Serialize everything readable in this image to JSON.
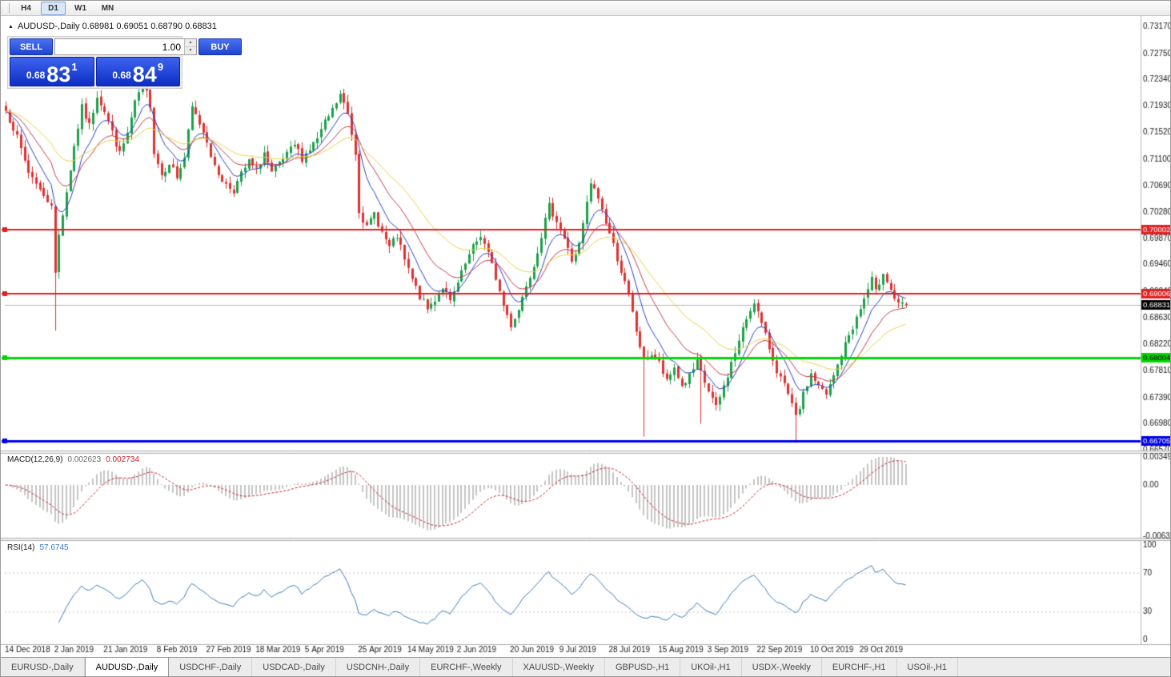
{
  "toolbar": {
    "timeframes": [
      {
        "label": "H4",
        "active": false
      },
      {
        "label": "D1",
        "active": true
      },
      {
        "label": "W1",
        "active": false
      },
      {
        "label": "MN",
        "active": false
      }
    ]
  },
  "chart": {
    "collapse_icon": "▲",
    "title": "AUDUSD-,Daily  0.68981 0.69051 0.68790 0.68831"
  },
  "trade_panel": {
    "sell_label": "SELL",
    "buy_label": "BUY",
    "volume": "1.00",
    "spin_up_icon": "▲",
    "spin_down_icon": "▼",
    "sell_price": {
      "small": "0.68",
      "big": "83",
      "sup": "1"
    },
    "buy_price": {
      "small": "0.68",
      "big": "84",
      "sup": "9"
    }
  },
  "indicators": {
    "macd": {
      "name": "MACD(12,26,9)",
      "value_main": "0.002623",
      "value_signal": "0.002734",
      "axis": [
        {
          "v": 0.00349,
          "label": "0.00349"
        },
        {
          "v": 0,
          "label": "0.00"
        },
        {
          "v": -0.00637,
          "label": "-0.00637"
        }
      ]
    },
    "rsi": {
      "name": "RSI(14)",
      "value": "57.6745",
      "axis": [
        {
          "v": 100,
          "label": "100"
        },
        {
          "v": 70,
          "label": "70"
        },
        {
          "v": 30,
          "label": "30"
        },
        {
          "v": 0,
          "label": "0"
        }
      ],
      "levels": [
        70,
        30
      ]
    }
  },
  "chart_data": {
    "type": "candlestick",
    "symbol": "AUDUSD",
    "timeframe": "Daily",
    "ohlc_display": {
      "open": "0.68981",
      "high": "0.69051",
      "low": "0.68790",
      "close": "0.68831"
    },
    "n_candles": 238,
    "seed": 7,
    "ylim": [
      0.66574,
      0.73256
    ],
    "y_ticks": [
      "0.73170",
      "0.72750",
      "0.72340",
      "0.71930",
      "0.71520",
      "0.71100",
      "0.70690",
      "0.70280",
      "0.69870",
      "0.69460",
      "0.69040",
      "0.68630",
      "0.68220",
      "0.67810",
      "0.67390",
      "0.66980",
      "0.66570"
    ],
    "x_labels": [
      {
        "i": 0,
        "label": "14 Dec 2018"
      },
      {
        "i": 13,
        "label": "2 Jan 2019"
      },
      {
        "i": 26,
        "label": "21 Jan 2019"
      },
      {
        "i": 40,
        "label": "8 Feb 2019"
      },
      {
        "i": 53,
        "label": "27 Feb 2019"
      },
      {
        "i": 66,
        "label": "18 Mar 2019"
      },
      {
        "i": 79,
        "label": "5 Apr 2019"
      },
      {
        "i": 93,
        "label": "25 Apr 2019"
      },
      {
        "i": 106,
        "label": "14 May 2019"
      },
      {
        "i": 119,
        "label": "2 Jun 2019"
      },
      {
        "i": 133,
        "label": "20 Jun 2019"
      },
      {
        "i": 146,
        "label": "9 Jul 2019"
      },
      {
        "i": 159,
        "label": "28 Jul 2019"
      },
      {
        "i": 172,
        "label": "15 Aug 2019"
      },
      {
        "i": 185,
        "label": "3 Sep 2019"
      },
      {
        "i": 198,
        "label": "22 Sep 2019"
      },
      {
        "i": 212,
        "label": "10 Oct 2019"
      },
      {
        "i": 225,
        "label": "29 Oct 2019"
      }
    ],
    "close_anchors": [
      [
        0,
        0.7185
      ],
      [
        2,
        0.716
      ],
      [
        4,
        0.7125
      ],
      [
        6,
        0.709
      ],
      [
        8,
        0.7075
      ],
      [
        10,
        0.705
      ],
      [
        12,
        0.7042
      ],
      [
        13,
        0.693
      ],
      [
        14,
        0.6992
      ],
      [
        16,
        0.706
      ],
      [
        18,
        0.713
      ],
      [
        20,
        0.719
      ],
      [
        22,
        0.7162
      ],
      [
        24,
        0.721
      ],
      [
        26,
        0.7186
      ],
      [
        28,
        0.7152
      ],
      [
        30,
        0.7118
      ],
      [
        32,
        0.715
      ],
      [
        34,
        0.7196
      ],
      [
        36,
        0.723
      ],
      [
        38,
        0.7196
      ],
      [
        39,
        0.7122
      ],
      [
        41,
        0.7086
      ],
      [
        43,
        0.7106
      ],
      [
        45,
        0.7082
      ],
      [
        47,
        0.7112
      ],
      [
        49,
        0.719
      ],
      [
        51,
        0.7166
      ],
      [
        53,
        0.714
      ],
      [
        55,
        0.7096
      ],
      [
        58,
        0.707
      ],
      [
        60,
        0.7062
      ],
      [
        62,
        0.7086
      ],
      [
        64,
        0.7106
      ],
      [
        66,
        0.7092
      ],
      [
        68,
        0.712
      ],
      [
        70,
        0.7086
      ],
      [
        72,
        0.7102
      ],
      [
        74,
        0.7116
      ],
      [
        76,
        0.7132
      ],
      [
        78,
        0.7112
      ],
      [
        80,
        0.7126
      ],
      [
        82,
        0.7142
      ],
      [
        84,
        0.7166
      ],
      [
        86,
        0.7186
      ],
      [
        88,
        0.721
      ],
      [
        90,
        0.718
      ],
      [
        92,
        0.712
      ],
      [
        93,
        0.7032
      ],
      [
        95,
        0.7002
      ],
      [
        97,
        0.7026
      ],
      [
        99,
        0.6996
      ],
      [
        101,
        0.6972
      ],
      [
        103,
        0.699
      ],
      [
        105,
        0.6952
      ],
      [
        107,
        0.6922
      ],
      [
        109,
        0.6896
      ],
      [
        111,
        0.6876
      ],
      [
        113,
        0.6892
      ],
      [
        115,
        0.6912
      ],
      [
        117,
        0.6886
      ],
      [
        119,
        0.6916
      ],
      [
        121,
        0.6946
      ],
      [
        123,
        0.6972
      ],
      [
        125,
        0.6992
      ],
      [
        127,
        0.6962
      ],
      [
        129,
        0.6926
      ],
      [
        131,
        0.6882
      ],
      [
        133,
        0.6852
      ],
      [
        135,
        0.6876
      ],
      [
        137,
        0.6916
      ],
      [
        139,
        0.6946
      ],
      [
        141,
        0.6992
      ],
      [
        143,
        0.7036
      ],
      [
        145,
        0.7016
      ],
      [
        147,
        0.6986
      ],
      [
        149,
        0.6952
      ],
      [
        151,
        0.6976
      ],
      [
        153,
        0.704
      ],
      [
        154,
        0.7072
      ],
      [
        156,
        0.705
      ],
      [
        158,
        0.7012
      ],
      [
        160,
        0.6976
      ],
      [
        162,
        0.6936
      ],
      [
        164,
        0.6896
      ],
      [
        166,
        0.6842
      ],
      [
        168,
        0.6796
      ],
      [
        170,
        0.6806
      ],
      [
        172,
        0.6792
      ],
      [
        174,
        0.6762
      ],
      [
        176,
        0.6786
      ],
      [
        178,
        0.6756
      ],
      [
        180,
        0.6772
      ],
      [
        182,
        0.6792
      ],
      [
        184,
        0.6762
      ],
      [
        186,
        0.6736
      ],
      [
        187,
        0.6722
      ],
      [
        189,
        0.6756
      ],
      [
        191,
        0.6792
      ],
      [
        193,
        0.6826
      ],
      [
        195,
        0.6862
      ],
      [
        197,
        0.689
      ],
      [
        199,
        0.6852
      ],
      [
        201,
        0.6816
      ],
      [
        203,
        0.6782
      ],
      [
        205,
        0.6756
      ],
      [
        207,
        0.6726
      ],
      [
        208,
        0.6706
      ],
      [
        210,
        0.6742
      ],
      [
        212,
        0.6776
      ],
      [
        214,
        0.6756
      ],
      [
        216,
        0.6742
      ],
      [
        218,
        0.6772
      ],
      [
        220,
        0.6806
      ],
      [
        222,
        0.6836
      ],
      [
        224,
        0.6862
      ],
      [
        226,
        0.6892
      ],
      [
        228,
        0.6922
      ],
      [
        229,
        0.6902
      ],
      [
        231,
        0.6936
      ],
      [
        233,
        0.6906
      ],
      [
        235,
        0.6882
      ],
      [
        237,
        0.68831
      ]
    ],
    "special_lows": [
      [
        13,
        0.6843
      ],
      [
        168,
        0.6678
      ],
      [
        183,
        0.6698
      ],
      [
        208,
        0.6672
      ]
    ],
    "hlines": [
      {
        "price": 0.70002,
        "color": "#e02020",
        "width": 2,
        "tag": "0.70002",
        "tag_fg": "#fff"
      },
      {
        "price": 0.69006,
        "color": "#e02020",
        "width": 2,
        "tag": "0.69006",
        "tag_fg": "#fff"
      },
      {
        "price": 0.68004,
        "color": "#00d800",
        "width": 3,
        "tag": "0.68004",
        "tag_fg": "#000"
      },
      {
        "price": 0.66705,
        "color": "#0000e8",
        "width": 3,
        "tag": "0.66705",
        "tag_fg": "#fff"
      }
    ],
    "current_price": {
      "price": 0.68831,
      "tag": "0.68831",
      "tag_bg": "#000",
      "tag_fg": "#fff"
    },
    "ma_lines": [
      {
        "period": 8,
        "color": "#2743c8"
      },
      {
        "period": 17,
        "color": "#c23b4b"
      },
      {
        "period": 34,
        "color": "#e8d44a"
      }
    ],
    "colors": {
      "up": "#1ba049",
      "down": "#e03030",
      "macd_hist": "#b2b2b2",
      "macd_signal": "#cc2233",
      "rsi": "#3d7dc0",
      "current_line": "#b4b4b4"
    }
  },
  "tabs": [
    {
      "label": "EURUSD-,Daily",
      "active": false
    },
    {
      "label": "AUDUSD-,Daily",
      "active": true
    },
    {
      "label": "USDCHF-,Daily",
      "active": false
    },
    {
      "label": "USDCAD-,Daily",
      "active": false
    },
    {
      "label": "USDCNH-,Daily",
      "active": false
    },
    {
      "label": "EURCHF-,Weekly",
      "active": false
    },
    {
      "label": "XAUUSD-,Weekly",
      "active": false
    },
    {
      "label": "GBPUSD-,H1",
      "active": false
    },
    {
      "label": "UKOil-,H1",
      "active": false
    },
    {
      "label": "USDX-,Weekly",
      "active": false
    },
    {
      "label": "EURCHF-,H1",
      "active": false
    },
    {
      "label": "USOil-,H1",
      "active": false
    }
  ]
}
